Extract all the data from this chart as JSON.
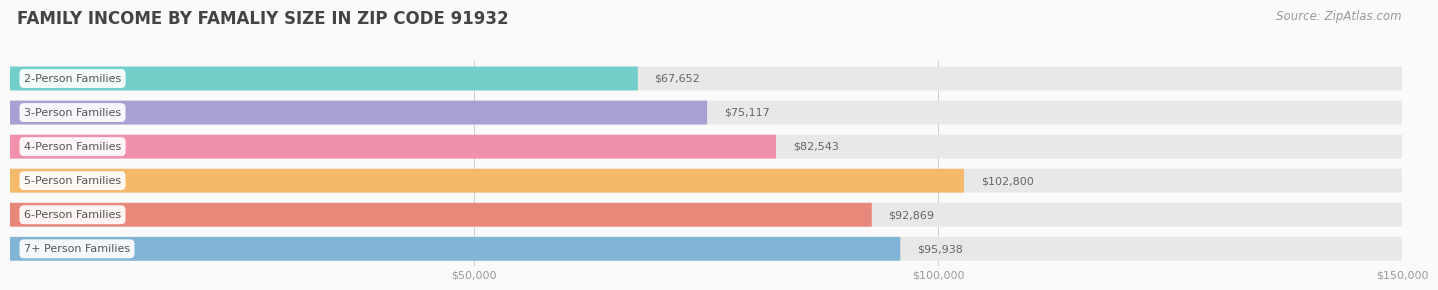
{
  "title": "FAMILY INCOME BY FAMALIY SIZE IN ZIP CODE 91932",
  "source": "Source: ZipAtlas.com",
  "categories": [
    "2-Person Families",
    "3-Person Families",
    "4-Person Families",
    "5-Person Families",
    "6-Person Families",
    "7+ Person Families"
  ],
  "values": [
    67652,
    75117,
    82543,
    102800,
    92869,
    95938
  ],
  "bar_colors": [
    "#72CEC9",
    "#A89FD3",
    "#F090AA",
    "#F5B96B",
    "#E8887A",
    "#82B4D8"
  ],
  "value_labels": [
    "$67,652",
    "$75,117",
    "$82,543",
    "$102,800",
    "$92,869",
    "$95,938"
  ],
  "xmin": 0,
  "xmax": 150000,
  "xticks": [
    0,
    50000,
    100000,
    150000
  ],
  "xtick_labels": [
    "",
    "$50,000",
    "$100,000",
    "$150,000"
  ],
  "background_color": "#FAFAFA",
  "bar_bg_color": "#E8E8E8",
  "title_fontsize": 12,
  "source_fontsize": 8.5,
  "label_fontsize": 8,
  "value_fontsize": 8,
  "tick_fontsize": 8
}
